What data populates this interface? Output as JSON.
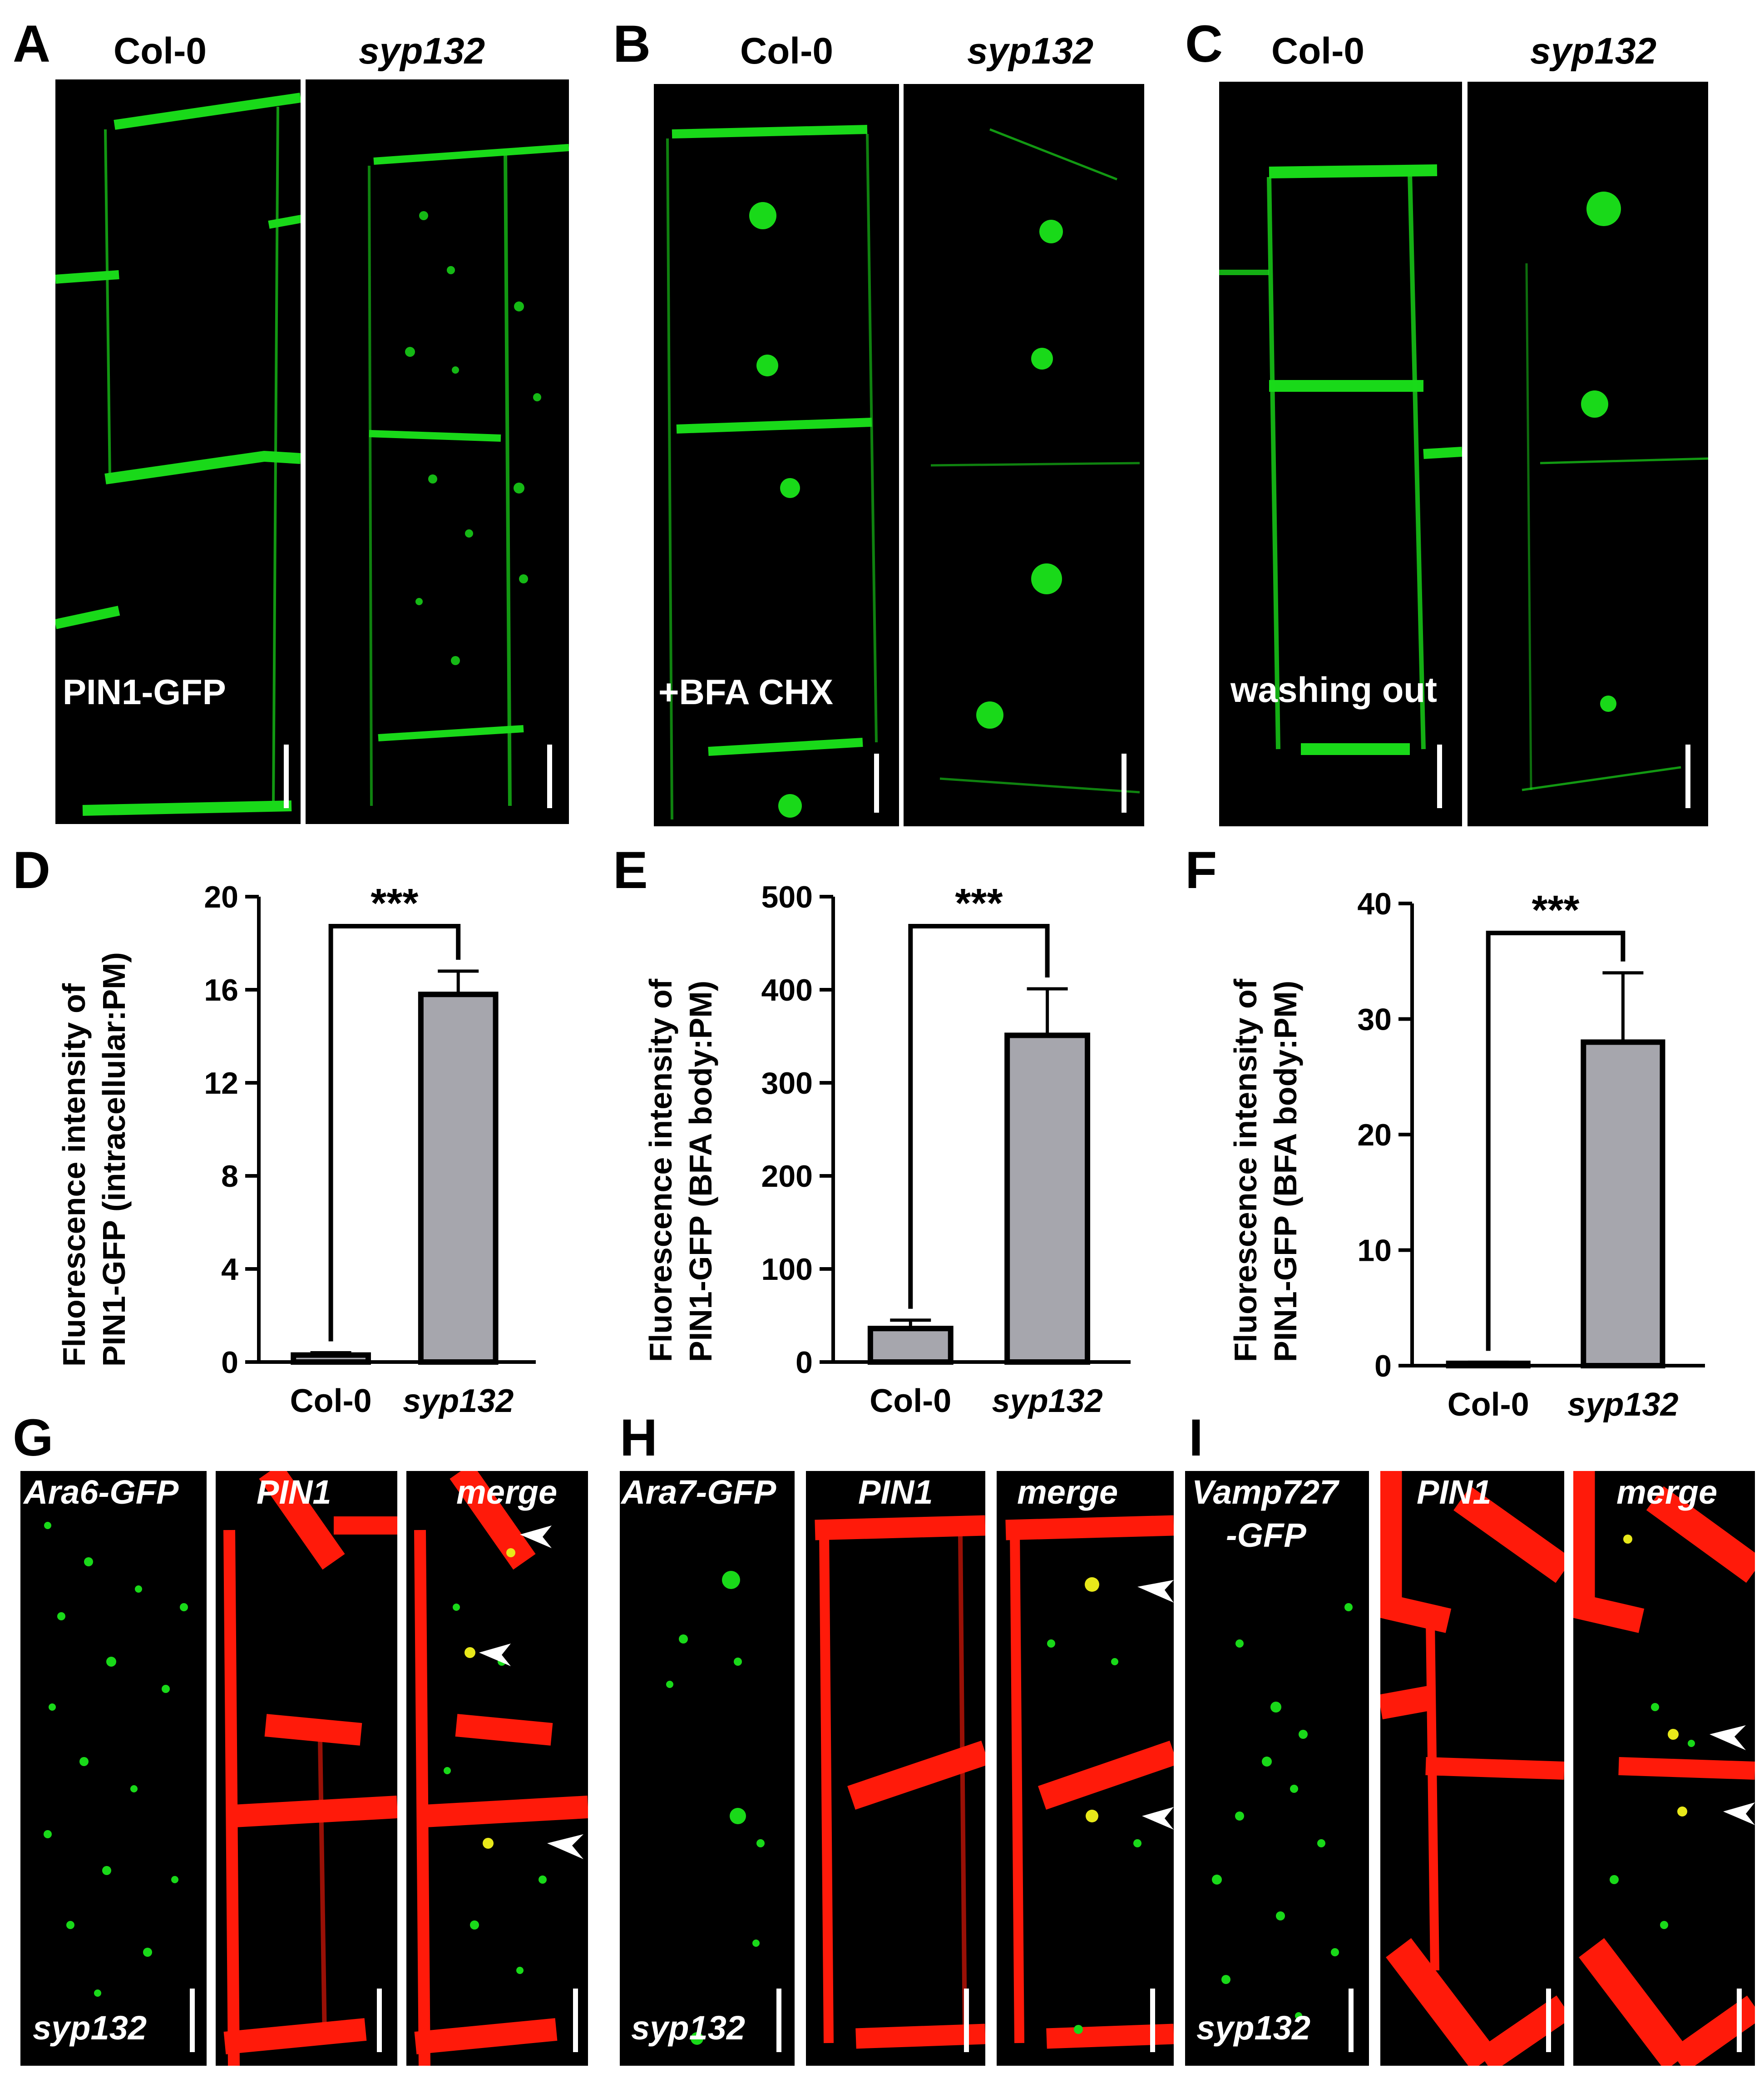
{
  "panels_top": [
    {
      "letter": "A",
      "left_label": "Col-0",
      "right_label": "syp132",
      "overlay": "PIN1-GFP"
    },
    {
      "letter": "B",
      "left_label": "Col-0",
      "right_label": "syp132",
      "overlay": "+BFA  CHX"
    },
    {
      "letter": "C",
      "left_label": "Col-0",
      "right_label": "syp132",
      "overlay": "washing out"
    }
  ],
  "panels_bottom": [
    {
      "letter": "G",
      "channel": "Ara6-GFP",
      "pin": "PIN1",
      "merge": "merge",
      "genotype": "syp132"
    },
    {
      "letter": "H",
      "channel": "Ara7-GFP",
      "pin": "PIN1",
      "merge": "merge",
      "genotype": "syp132"
    },
    {
      "letter": "I",
      "channel_line1": "Vamp727",
      "channel_line2": "-GFP",
      "pin": "PIN1",
      "merge": "merge",
      "genotype": "syp132"
    }
  ],
  "colors": {
    "gfp": "#19d919",
    "pin": "#ff1a0a",
    "bar": "#a6a6ad",
    "background": "#000000"
  },
  "chart_data": [
    {
      "letter": "D",
      "type": "bar",
      "categories": [
        "Col-0",
        "syp132"
      ],
      "values": [
        0.3,
        15.8
      ],
      "errors": [
        0.1,
        1.0
      ],
      "ylabel_line1": "Fluorescence intensity of",
      "ylabel_line2": "PIN1-GFP (intracellular:PM)",
      "ylim": [
        0,
        20
      ],
      "ticks": [
        "0",
        "4",
        "8",
        "12",
        "16",
        "20"
      ],
      "significance": "***"
    },
    {
      "letter": "E",
      "type": "bar",
      "categories": [
        "Col-0",
        "syp132"
      ],
      "values": [
        36,
        351
      ],
      "errors": [
        9,
        50
      ],
      "ylabel_line1": "Fluorescence intensity of",
      "ylabel_line2": "PIN1-GFP (BFA body:PM)",
      "ylim": [
        0,
        500
      ],
      "ticks": [
        "0",
        "100",
        "200",
        "300",
        "400",
        "500"
      ],
      "significance": "***"
    },
    {
      "letter": "F",
      "type": "bar",
      "categories": [
        "Col-0",
        "syp132"
      ],
      "values": [
        0.2,
        28
      ],
      "errors": [
        0.1,
        6
      ],
      "ylabel_line1": "Fluorescence intensity of",
      "ylabel_line2": "PIN1-GFP (BFA body:PM)",
      "ylim": [
        0,
        40
      ],
      "ticks": [
        "0",
        "10",
        "20",
        "30",
        "40"
      ],
      "significance": "***"
    }
  ]
}
